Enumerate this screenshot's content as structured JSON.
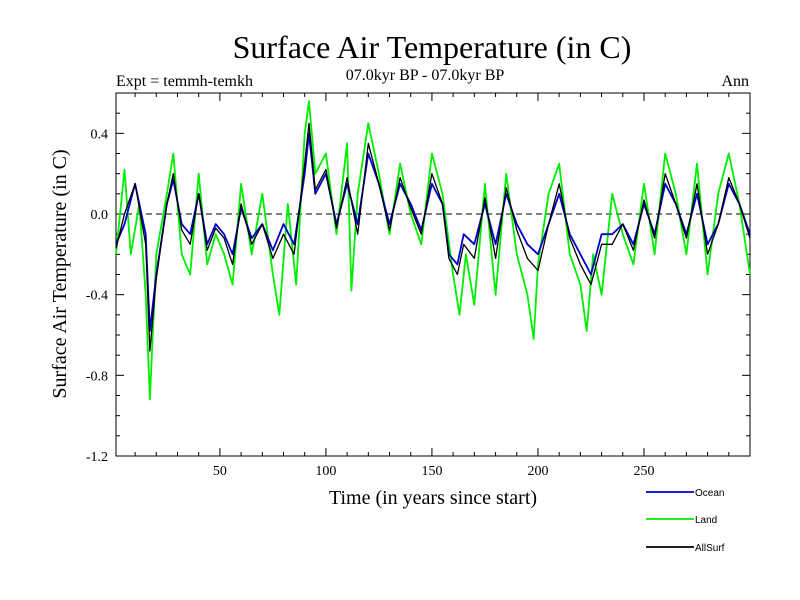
{
  "chart_data": {
    "type": "line",
    "title": "Surface Air Temperature (in C)",
    "subtitle": "07.0kyr BP - 07.0kyr BP",
    "left_label": "Expt = temmh-temkh",
    "right_label": "Ann",
    "xlabel": "Time (in years since start)",
    "ylabel": "Surface Air Temperature (in C)",
    "xlim": [
      1,
      300
    ],
    "ylim": [
      -1.2,
      0.6
    ],
    "xticks": [
      50,
      100,
      150,
      200,
      250
    ],
    "yticks": [
      -1.2,
      -0.8,
      -0.4,
      0.0,
      0.4
    ],
    "ytick_labels": [
      "-1.2",
      "-0.8",
      "-0.4",
      "0.0",
      "0.4"
    ],
    "zero_line": "dashed",
    "legend_position": "bottom-right",
    "series": [
      {
        "name": "Ocean",
        "color": "#0000cc",
        "x": [
          1,
          5,
          10,
          15,
          17,
          20,
          25,
          28,
          32,
          36,
          40,
          44,
          48,
          52,
          56,
          60,
          65,
          70,
          75,
          80,
          85,
          90,
          92,
          95,
          100,
          105,
          110,
          115,
          120,
          125,
          130,
          135,
          140,
          145,
          150,
          155,
          158,
          162,
          165,
          170,
          175,
          180,
          185,
          190,
          195,
          200,
          205,
          210,
          215,
          220,
          225,
          230,
          235,
          240,
          245,
          250,
          255,
          260,
          265,
          270,
          275,
          280,
          285,
          290,
          295,
          300
        ],
        "y": [
          -0.15,
          -0.05,
          0.15,
          -0.1,
          -0.58,
          -0.3,
          0.05,
          0.17,
          -0.05,
          -0.1,
          0.1,
          -0.15,
          -0.05,
          -0.1,
          -0.2,
          0.03,
          -0.12,
          -0.05,
          -0.18,
          -0.05,
          -0.15,
          0.2,
          0.4,
          0.1,
          0.2,
          -0.05,
          0.15,
          -0.05,
          0.3,
          0.15,
          -0.05,
          0.15,
          0.05,
          -0.08,
          0.15,
          0.05,
          -0.2,
          -0.25,
          -0.1,
          -0.15,
          0.05,
          -0.15,
          0.1,
          -0.05,
          -0.15,
          -0.2,
          -0.05,
          0.1,
          -0.1,
          -0.2,
          -0.3,
          -0.1,
          -0.1,
          -0.05,
          -0.15,
          0.05,
          -0.1,
          0.15,
          0.05,
          -0.1,
          0.1,
          -0.15,
          -0.05,
          0.15,
          0.05,
          -0.1
        ]
      },
      {
        "name": "Land",
        "color": "#00ee00",
        "x": [
          1,
          5,
          8,
          12,
          15,
          17,
          20,
          25,
          28,
          32,
          36,
          40,
          44,
          48,
          52,
          56,
          60,
          65,
          70,
          75,
          78,
          82,
          86,
          90,
          92,
          95,
          100,
          105,
          110,
          112,
          115,
          120,
          125,
          130,
          135,
          140,
          145,
          150,
          155,
          160,
          163,
          166,
          170,
          175,
          180,
          185,
          190,
          195,
          198,
          200,
          205,
          210,
          215,
          220,
          223,
          226,
          230,
          235,
          240,
          245,
          250,
          255,
          260,
          265,
          270,
          275,
          280,
          285,
          290,
          295,
          300
        ],
        "y": [
          -0.2,
          0.22,
          -0.2,
          0.05,
          -0.4,
          -0.92,
          -0.2,
          0.1,
          0.3,
          -0.2,
          -0.3,
          0.2,
          -0.25,
          -0.1,
          -0.2,
          -0.35,
          0.15,
          -0.2,
          0.1,
          -0.3,
          -0.5,
          0.05,
          -0.35,
          0.4,
          0.56,
          0.2,
          0.3,
          -0.1,
          0.35,
          -0.38,
          0.1,
          0.45,
          0.2,
          -0.1,
          0.25,
          0.0,
          -0.15,
          0.3,
          0.1,
          -0.3,
          -0.5,
          -0.2,
          -0.45,
          0.15,
          -0.4,
          0.2,
          -0.2,
          -0.4,
          -0.62,
          -0.25,
          0.1,
          0.25,
          -0.2,
          -0.35,
          -0.58,
          -0.2,
          -0.4,
          0.1,
          -0.1,
          -0.25,
          0.15,
          -0.2,
          0.3,
          0.1,
          -0.2,
          0.25,
          -0.3,
          0.1,
          0.3,
          0.05,
          -0.3
        ]
      },
      {
        "name": "AllSurf",
        "color": "#000000",
        "x": [
          1,
          5,
          10,
          15,
          17,
          20,
          25,
          28,
          32,
          36,
          40,
          44,
          48,
          52,
          56,
          60,
          65,
          70,
          75,
          80,
          85,
          90,
          92,
          95,
          100,
          105,
          110,
          115,
          120,
          125,
          130,
          135,
          140,
          145,
          150,
          155,
          158,
          162,
          165,
          170,
          175,
          180,
          185,
          190,
          195,
          200,
          205,
          210,
          215,
          220,
          225,
          230,
          235,
          240,
          245,
          250,
          255,
          260,
          265,
          270,
          275,
          280,
          285,
          290,
          295,
          300
        ],
        "y": [
          -0.17,
          0.0,
          0.15,
          -0.15,
          -0.68,
          -0.32,
          0.05,
          0.2,
          -0.08,
          -0.15,
          0.1,
          -0.18,
          -0.07,
          -0.12,
          -0.25,
          0.05,
          -0.15,
          -0.05,
          -0.22,
          -0.1,
          -0.2,
          0.25,
          0.45,
          0.12,
          0.22,
          -0.07,
          0.18,
          -0.1,
          0.35,
          0.15,
          -0.08,
          0.18,
          0.03,
          -0.1,
          0.2,
          0.05,
          -0.22,
          -0.3,
          -0.15,
          -0.22,
          0.08,
          -0.22,
          0.13,
          -0.08,
          -0.22,
          -0.28,
          -0.05,
          0.15,
          -0.12,
          -0.25,
          -0.35,
          -0.15,
          -0.15,
          -0.05,
          -0.18,
          0.07,
          -0.12,
          0.2,
          0.05,
          -0.12,
          0.15,
          -0.2,
          -0.05,
          0.18,
          0.05,
          -0.12
        ]
      }
    ]
  }
}
